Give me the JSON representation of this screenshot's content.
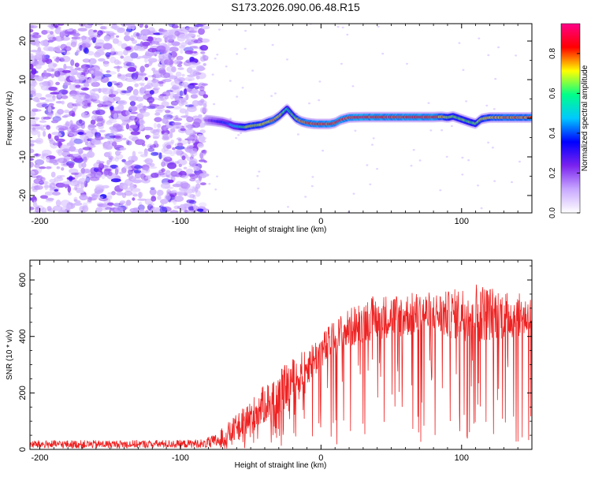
{
  "figure": {
    "title": "S173.2026.090.06.48.R15"
  },
  "chart_data": [
    {
      "type": "heatmap",
      "title": "S173.2026.090.06.48.R15",
      "xlabel": "Height of straight line (km)",
      "ylabel": "Frequency (Hz)",
      "xlim": [
        -207,
        150
      ],
      "ylim": [
        -24.5,
        24.5
      ],
      "xticks": [
        -200,
        -100,
        0,
        100
      ],
      "yticks": [
        -20,
        -10,
        0,
        10,
        20
      ],
      "grid": false,
      "colorbar": {
        "label": "Normalized spectral amplitude",
        "range": [
          0.0,
          0.95
        ],
        "ticks": [
          0.0,
          0.2,
          0.4,
          0.6,
          0.8
        ],
        "tick_labels": [
          "0.0",
          "0.2",
          "0.4",
          "0.6",
          "0.8"
        ],
        "colormap": [
          "#ffffff",
          "#c8a8ff",
          "#7a22ee",
          "#0000ff",
          "#00c8ff",
          "#00ff88",
          "#ffff00",
          "#ff0000",
          "#ff0088"
        ]
      },
      "noise_region_end_km": -82,
      "ridge": {
        "x": [
          -82,
          -78,
          -74,
          -70,
          -66,
          -62,
          -58,
          -54,
          -50,
          -46,
          -42,
          -38,
          -34,
          -30,
          -27,
          -24,
          -21,
          -18,
          -14,
          -10,
          -6,
          -2,
          2,
          6,
          10,
          14,
          20,
          30,
          40,
          50,
          60,
          70,
          80,
          86,
          90,
          94,
          98,
          102,
          106,
          110,
          114,
          120,
          130,
          140,
          150
        ],
        "y": [
          -0.5,
          -0.6,
          -0.8,
          -1.0,
          -1.4,
          -2.0,
          -2.2,
          -2.3,
          -2.0,
          -1.8,
          -1.6,
          -1.0,
          -0.5,
          0.5,
          1.5,
          2.5,
          1.2,
          0.0,
          -0.8,
          -1.2,
          -1.4,
          -1.5,
          -1.5,
          -1.5,
          -1.2,
          -0.4,
          0.2,
          0.3,
          0.3,
          0.3,
          0.3,
          0.3,
          0.3,
          0.4,
          0.2,
          0.5,
          0.0,
          -0.5,
          -1.0,
          -1.4,
          -0.2,
          0.2,
          0.2,
          0.2,
          0.2
        ],
        "amplitude": [
          0.2,
          0.3,
          0.35,
          0.4,
          0.45,
          0.55,
          0.6,
          0.7,
          0.75,
          0.75,
          0.8,
          0.8,
          0.8,
          0.75,
          0.7,
          0.65,
          0.7,
          0.75,
          0.85,
          0.9,
          0.9,
          0.9,
          0.9,
          0.9,
          0.9,
          0.9,
          0.9,
          0.9,
          0.9,
          0.9,
          0.9,
          0.9,
          0.9,
          0.8,
          0.75,
          0.7,
          0.7,
          0.7,
          0.7,
          0.7,
          0.75,
          0.8,
          0.85,
          0.85,
          0.85
        ]
      }
    },
    {
      "type": "line",
      "title": "",
      "xlabel": "Height of straight line (km)",
      "ylabel": "SNR (10 * v/v)",
      "xlim": [
        -207,
        150
      ],
      "ylim": [
        0,
        670
      ],
      "xticks": [
        -200,
        -100,
        0,
        100
      ],
      "yticks": [
        0,
        200,
        400,
        600
      ],
      "grid": false,
      "series": [
        {
          "name": "SNR",
          "color": "#ee2222",
          "trend": {
            "x": [
              -207,
              -180,
              -150,
              -120,
              -100,
              -85,
              -75,
              -65,
              -55,
              -45,
              -35,
              -25,
              -15,
              -5,
              5,
              15,
              25,
              35,
              50,
              70,
              90,
              110,
              130,
              150
            ],
            "baseline": [
              12,
              12,
              12,
              13,
              13,
              14,
              22,
              45,
              80,
              120,
              160,
              200,
              250,
              300,
              350,
              390,
              420,
              440,
              450,
              455,
              450,
              455,
              450,
              445
            ],
            "peak": [
              32,
              32,
              32,
              33,
              33,
              36,
              60,
              110,
              160,
              220,
              270,
              320,
              360,
              400,
              450,
              500,
              530,
              560,
              570,
              575,
              580,
              620,
              585,
              560
            ]
          }
        }
      ]
    }
  ]
}
